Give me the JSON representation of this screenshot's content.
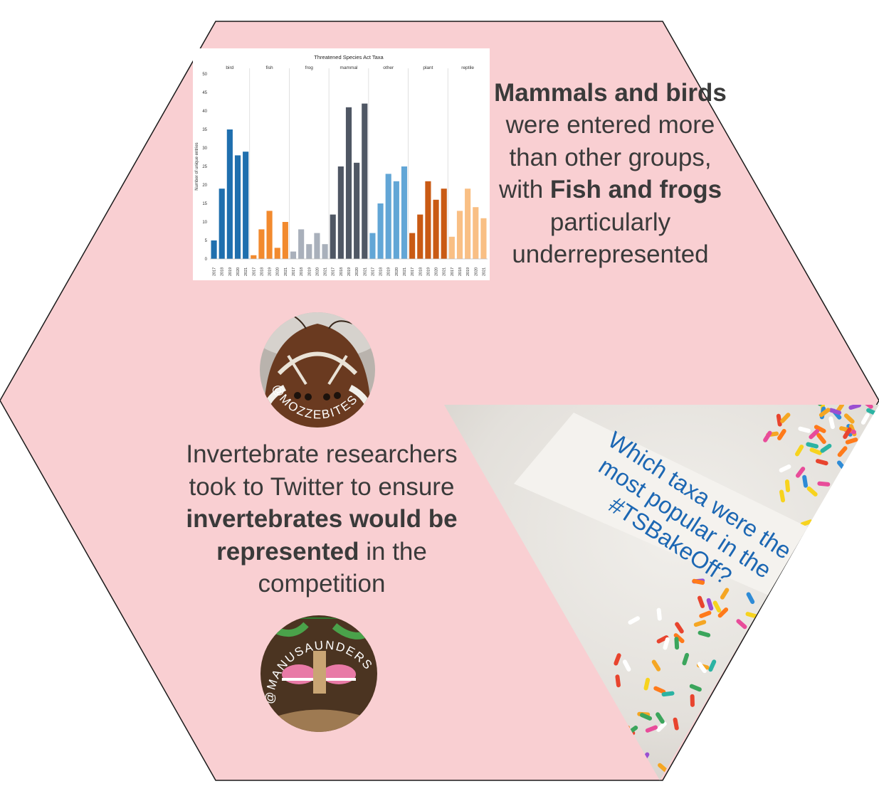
{
  "colors": {
    "hexagon_fill": "#f9cfd2",
    "hexagon_stroke": "#1a1a1a",
    "text": "#3a3a3a",
    "caption_blue": "#1c67b3",
    "caption_box": "#f4f2ee"
  },
  "chart_data": {
    "type": "bar",
    "title": "Threatened Species Act Taxa",
    "ylabel": "Number of unique entries",
    "xlabel": "",
    "ylim": [
      0,
      50
    ],
    "yticks": [
      0,
      5,
      10,
      15,
      20,
      25,
      30,
      35,
      40,
      45,
      50
    ],
    "grid": false,
    "legend": "none",
    "years": [
      "2017",
      "2018",
      "2019",
      "2020",
      "2021"
    ],
    "groups": [
      {
        "name": "bird",
        "color": "#1f6fae",
        "values": [
          5,
          19,
          35,
          28,
          29
        ]
      },
      {
        "name": "fish",
        "color": "#f28a2e",
        "values": [
          1,
          8,
          13,
          3,
          10
        ]
      },
      {
        "name": "frog",
        "color": "#a9b0bb",
        "values": [
          2,
          8,
          4,
          7,
          4
        ]
      },
      {
        "name": "mammal",
        "color": "#4f5764",
        "values": [
          12,
          25,
          41,
          26,
          42
        ]
      },
      {
        "name": "other",
        "color": "#62a6d6",
        "values": [
          7,
          15,
          23,
          21,
          25
        ]
      },
      {
        "name": "plant",
        "color": "#c95a14",
        "values": [
          7,
          12,
          21,
          16,
          19
        ]
      },
      {
        "name": "reptile",
        "color": "#f9bf84",
        "values": [
          6,
          13,
          19,
          14,
          11
        ]
      }
    ]
  },
  "text_mammals": {
    "part1": "Mammals and birds",
    "part2": " were entered more than other groups, with ",
    "part3": "Fish and frogs",
    "part4": " particularly underrepresented"
  },
  "text_invertebrates": {
    "part1": "Invertebrate researchers took to Twitter to ensure ",
    "part2": "invertebrates would be represented",
    "part3": " in the competition"
  },
  "photo_moth": {
    "handle": "@MOZZEBITES",
    "icon": "moth-cake-photo-icon"
  },
  "photo_beetle": {
    "handle": "@MANUSAUNDERS",
    "icon": "beetle-cake-photo-icon"
  },
  "sprinkles_caption": {
    "line1": "Which taxa were the",
    "line2": "most popular in the",
    "line3": "#TSBakeOff?"
  }
}
